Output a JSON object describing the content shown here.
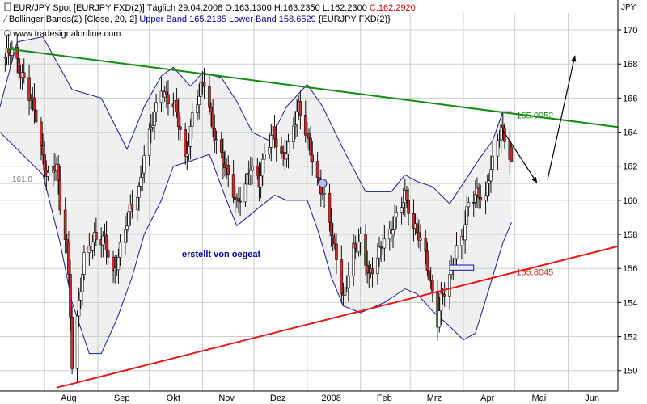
{
  "header": {
    "line1_prefix": "EUR/JPY Spot [EURJPY FXD(2)]  Täglich 29.04.2008 O:163.1300 H:163.2350 L:162.2300",
    "line1_close": "C:162.2920",
    "line2_prefix": "Bollinger Bands(2) [Close, 20, 2]",
    "line2_values": "Upper Band 165.2135 Lower Band 158.6529",
    "line2_suffix": "{EURJPY FXD(2)}",
    "line3": "© www.tradesignalonline.com"
  },
  "annotation_text": "erstellt von oegeat",
  "colors": {
    "background": "#ffffff",
    "band_fill": "#f0f0f0",
    "band_line": "#1a1aa0",
    "up_candle": "#ffffff",
    "down_candle": "#cc2b2b",
    "candle_outline": "#111111",
    "resistance": "#138a13",
    "support": "#e51919",
    "grid": "#c8d0c8",
    "info_blue": "#0000a0",
    "close_red": "#cc0000"
  },
  "chart_data": {
    "type": "candlestick",
    "symbol": "EUR/JPY Spot",
    "unit": "JPY",
    "y_range": [
      148.8,
      171
    ],
    "y_ticks": [
      150,
      152,
      154,
      156,
      158,
      160,
      162,
      164,
      166,
      168,
      170
    ],
    "x_range": [
      "2007-07-06",
      "2008-06-30"
    ],
    "month_labels": [
      {
        "label": "Aug",
        "date": "2007-08-15"
      },
      {
        "label": "Sep",
        "date": "2007-09-15"
      },
      {
        "label": "Okt",
        "date": "2007-10-15"
      },
      {
        "label": "Nov",
        "date": "2007-11-15"
      },
      {
        "label": "Dez",
        "date": "2007-12-15"
      },
      {
        "label": "2008",
        "date": "2008-01-15"
      },
      {
        "label": "Feb",
        "date": "2008-02-15"
      },
      {
        "label": "Mrz",
        "date": "2008-03-15"
      },
      {
        "label": "Apr",
        "date": "2008-04-15"
      },
      {
        "label": "Mai",
        "date": "2008-05-15"
      },
      {
        "label": "Jun",
        "date": "2008-06-15"
      }
    ],
    "last_bar": {
      "date": "2008-04-29",
      "open": 163.13,
      "high": 163.235,
      "low": 162.23,
      "close": 162.292
    },
    "closes": [
      {
        "date": "2007-07-09",
        "close": 168.4
      },
      {
        "date": "2007-07-13",
        "close": 168.7
      },
      {
        "date": "2007-07-20",
        "close": 167.2
      },
      {
        "date": "2007-07-27",
        "close": 164.8
      },
      {
        "date": "2007-07-31",
        "close": 162.5
      },
      {
        "date": "2007-08-03",
        "close": 161.5
      },
      {
        "date": "2007-08-08",
        "close": 162.0
      },
      {
        "date": "2007-08-10",
        "close": 159.3
      },
      {
        "date": "2007-08-14",
        "close": 157.6
      },
      {
        "date": "2007-08-16",
        "close": 153.5
      },
      {
        "date": "2007-08-17",
        "close": 150.5
      },
      {
        "date": "2007-08-21",
        "close": 153.8
      },
      {
        "date": "2007-08-24",
        "close": 156.5
      },
      {
        "date": "2007-08-30",
        "close": 158.0
      },
      {
        "date": "2007-09-05",
        "close": 157.5
      },
      {
        "date": "2007-09-10",
        "close": 155.6
      },
      {
        "date": "2007-09-14",
        "close": 157.3
      },
      {
        "date": "2007-09-19",
        "close": 159.0
      },
      {
        "date": "2007-09-25",
        "close": 160.7
      },
      {
        "date": "2007-09-28",
        "close": 162.8
      },
      {
        "date": "2007-10-03",
        "close": 164.5
      },
      {
        "date": "2007-10-08",
        "close": 166.6
      },
      {
        "date": "2007-10-11",
        "close": 166.2
      },
      {
        "date": "2007-10-16",
        "close": 165.4
      },
      {
        "date": "2007-10-19",
        "close": 164.0
      },
      {
        "date": "2007-10-22",
        "close": 162.3
      },
      {
        "date": "2007-10-26",
        "close": 165.0
      },
      {
        "date": "2007-10-31",
        "close": 166.4
      },
      {
        "date": "2007-11-02",
        "close": 166.9
      },
      {
        "date": "2007-11-06",
        "close": 165.0
      },
      {
        "date": "2007-11-09",
        "close": 163.5
      },
      {
        "date": "2007-11-13",
        "close": 162.2
      },
      {
        "date": "2007-11-16",
        "close": 161.3
      },
      {
        "date": "2007-11-21",
        "close": 160.0
      },
      {
        "date": "2007-11-26",
        "close": 160.8
      },
      {
        "date": "2007-11-29",
        "close": 161.8
      },
      {
        "date": "2007-12-04",
        "close": 161.2
      },
      {
        "date": "2007-12-07",
        "close": 162.8
      },
      {
        "date": "2007-12-12",
        "close": 163.8
      },
      {
        "date": "2007-12-17",
        "close": 162.6
      },
      {
        "date": "2007-12-21",
        "close": 163.2
      },
      {
        "date": "2007-12-27",
        "close": 165.3
      },
      {
        "date": "2008-01-02",
        "close": 163.6
      },
      {
        "date": "2008-01-07",
        "close": 161.0
      },
      {
        "date": "2008-01-11",
        "close": 160.0
      },
      {
        "date": "2008-01-15",
        "close": 158.4
      },
      {
        "date": "2008-01-18",
        "close": 156.8
      },
      {
        "date": "2008-01-22",
        "close": 154.0
      },
      {
        "date": "2008-01-24",
        "close": 155.0
      },
      {
        "date": "2008-01-28",
        "close": 157.2
      },
      {
        "date": "2008-02-01",
        "close": 157.8
      },
      {
        "date": "2008-02-06",
        "close": 155.3
      },
      {
        "date": "2008-02-11",
        "close": 156.8
      },
      {
        "date": "2008-02-14",
        "close": 157.7
      },
      {
        "date": "2008-02-19",
        "close": 158.0
      },
      {
        "date": "2008-02-22",
        "close": 159.0
      },
      {
        "date": "2008-02-27",
        "close": 160.5
      },
      {
        "date": "2008-03-03",
        "close": 158.3
      },
      {
        "date": "2008-03-06",
        "close": 157.8
      },
      {
        "date": "2008-03-10",
        "close": 156.8
      },
      {
        "date": "2008-03-13",
        "close": 155.2
      },
      {
        "date": "2008-03-17",
        "close": 152.8
      },
      {
        "date": "2008-03-19",
        "close": 154.0
      },
      {
        "date": "2008-03-24",
        "close": 155.6
      },
      {
        "date": "2008-03-27",
        "close": 157.0
      },
      {
        "date": "2008-04-01",
        "close": 157.8
      },
      {
        "date": "2008-04-04",
        "close": 159.8
      },
      {
        "date": "2008-04-09",
        "close": 160.6
      },
      {
        "date": "2008-04-14",
        "close": 160.0
      },
      {
        "date": "2008-04-17",
        "close": 161.8
      },
      {
        "date": "2008-04-21",
        "close": 163.5
      },
      {
        "date": "2008-04-23",
        "close": 164.6
      },
      {
        "date": "2008-04-25",
        "close": 163.6
      },
      {
        "date": "2008-04-29",
        "close": 162.3
      }
    ],
    "bollinger_upper": [
      {
        "date": "2007-07-06",
        "value": 165.5
      },
      {
        "date": "2007-07-16",
        "value": 169.3
      },
      {
        "date": "2007-07-31",
        "value": 169.6
      },
      {
        "date": "2007-08-17",
        "value": 166.5
      },
      {
        "date": "2007-09-03",
        "value": 166.0
      },
      {
        "date": "2007-09-18",
        "value": 163.0
      },
      {
        "date": "2007-09-28",
        "value": 165.5
      },
      {
        "date": "2007-10-08",
        "value": 167.3
      },
      {
        "date": "2007-10-15",
        "value": 167.8
      },
      {
        "date": "2007-10-25",
        "value": 166.7
      },
      {
        "date": "2007-11-01",
        "value": 167.5
      },
      {
        "date": "2007-11-12",
        "value": 167.2
      },
      {
        "date": "2007-11-21",
        "value": 165.8
      },
      {
        "date": "2007-11-30",
        "value": 164.0
      },
      {
        "date": "2007-12-10",
        "value": 163.5
      },
      {
        "date": "2007-12-20",
        "value": 165.5
      },
      {
        "date": "2008-01-01",
        "value": 166.8
      },
      {
        "date": "2008-01-10",
        "value": 165.5
      },
      {
        "date": "2008-01-22",
        "value": 163.0
      },
      {
        "date": "2008-02-04",
        "value": 160.5
      },
      {
        "date": "2008-02-19",
        "value": 160.5
      },
      {
        "date": "2008-02-27",
        "value": 161.5
      },
      {
        "date": "2008-03-05",
        "value": 161.1
      },
      {
        "date": "2008-03-14",
        "value": 160.8
      },
      {
        "date": "2008-03-24",
        "value": 159.8
      },
      {
        "date": "2008-04-01",
        "value": 161.0
      },
      {
        "date": "2008-04-10",
        "value": 162.4
      },
      {
        "date": "2008-04-18",
        "value": 163.5
      },
      {
        "date": "2008-04-24",
        "value": 165.2
      },
      {
        "date": "2008-04-29",
        "value": 165.2
      }
    ],
    "bollinger_lower": [
      {
        "date": "2007-07-06",
        "value": 164.0
      },
      {
        "date": "2007-07-16",
        "value": 163.0
      },
      {
        "date": "2007-07-31",
        "value": 161.5
      },
      {
        "date": "2007-08-10",
        "value": 157.5
      },
      {
        "date": "2007-08-17",
        "value": 154.0
      },
      {
        "date": "2007-08-27",
        "value": 151.0
      },
      {
        "date": "2007-09-03",
        "value": 151.0
      },
      {
        "date": "2007-09-12",
        "value": 153.0
      },
      {
        "date": "2007-09-21",
        "value": 155.5
      },
      {
        "date": "2007-09-28",
        "value": 158.0
      },
      {
        "date": "2007-10-08",
        "value": 160.0
      },
      {
        "date": "2007-10-15",
        "value": 162.0
      },
      {
        "date": "2007-10-25",
        "value": 162.3
      },
      {
        "date": "2007-11-05",
        "value": 162.7
      },
      {
        "date": "2007-11-15",
        "value": 160.0
      },
      {
        "date": "2007-11-21",
        "value": 158.5
      },
      {
        "date": "2007-12-03",
        "value": 159.5
      },
      {
        "date": "2007-12-13",
        "value": 160.3
      },
      {
        "date": "2007-12-20",
        "value": 160.0
      },
      {
        "date": "2008-01-01",
        "value": 160.0
      },
      {
        "date": "2008-01-08",
        "value": 158.0
      },
      {
        "date": "2008-01-15",
        "value": 155.5
      },
      {
        "date": "2008-01-22",
        "value": 153.8
      },
      {
        "date": "2008-02-01",
        "value": 153.4
      },
      {
        "date": "2008-02-15",
        "value": 154.0
      },
      {
        "date": "2008-02-27",
        "value": 154.8
      },
      {
        "date": "2008-03-05",
        "value": 154.5
      },
      {
        "date": "2008-03-14",
        "value": 153.5
      },
      {
        "date": "2008-03-24",
        "value": 152.6
      },
      {
        "date": "2008-04-01",
        "value": 151.8
      },
      {
        "date": "2008-04-08",
        "value": 152.2
      },
      {
        "date": "2008-04-15",
        "value": 154.5
      },
      {
        "date": "2008-04-24",
        "value": 157.5
      },
      {
        "date": "2008-04-29",
        "value": 158.7
      }
    ],
    "trendlines": [
      {
        "name": "resistance",
        "label": "165.0052",
        "start": {
          "date": "2007-07-10",
          "value": 168.9
        },
        "end": {
          "date": "2008-06-30",
          "value": 164.3
        },
        "label_at": {
          "date": "2008-04-29",
          "value": 165.0
        }
      },
      {
        "name": "support",
        "label": "155.8045",
        "start": {
          "date": "2007-08-08",
          "value": 149.0
        },
        "end": {
          "date": "2008-06-30",
          "value": 157.3
        },
        "label_at": {
          "date": "2008-04-29",
          "value": 155.8
        }
      }
    ],
    "horizontal_line": {
      "value": 161.0,
      "label": "161.0"
    },
    "marker": {
      "date": "2008-01-10",
      "value": 161.0
    },
    "forecast_path": [
      {
        "date": "2008-04-24",
        "value": 164.1
      },
      {
        "date": "2008-05-14",
        "value": 161.0
      },
      {
        "date": "2008-05-20",
        "value": 161.2
      },
      {
        "date": "2008-06-05",
        "value": 168.5
      }
    ],
    "box": {
      "start": "2008-03-24",
      "end": "2008-04-07",
      "value_low": 155.9,
      "value_high": 156.2
    }
  }
}
